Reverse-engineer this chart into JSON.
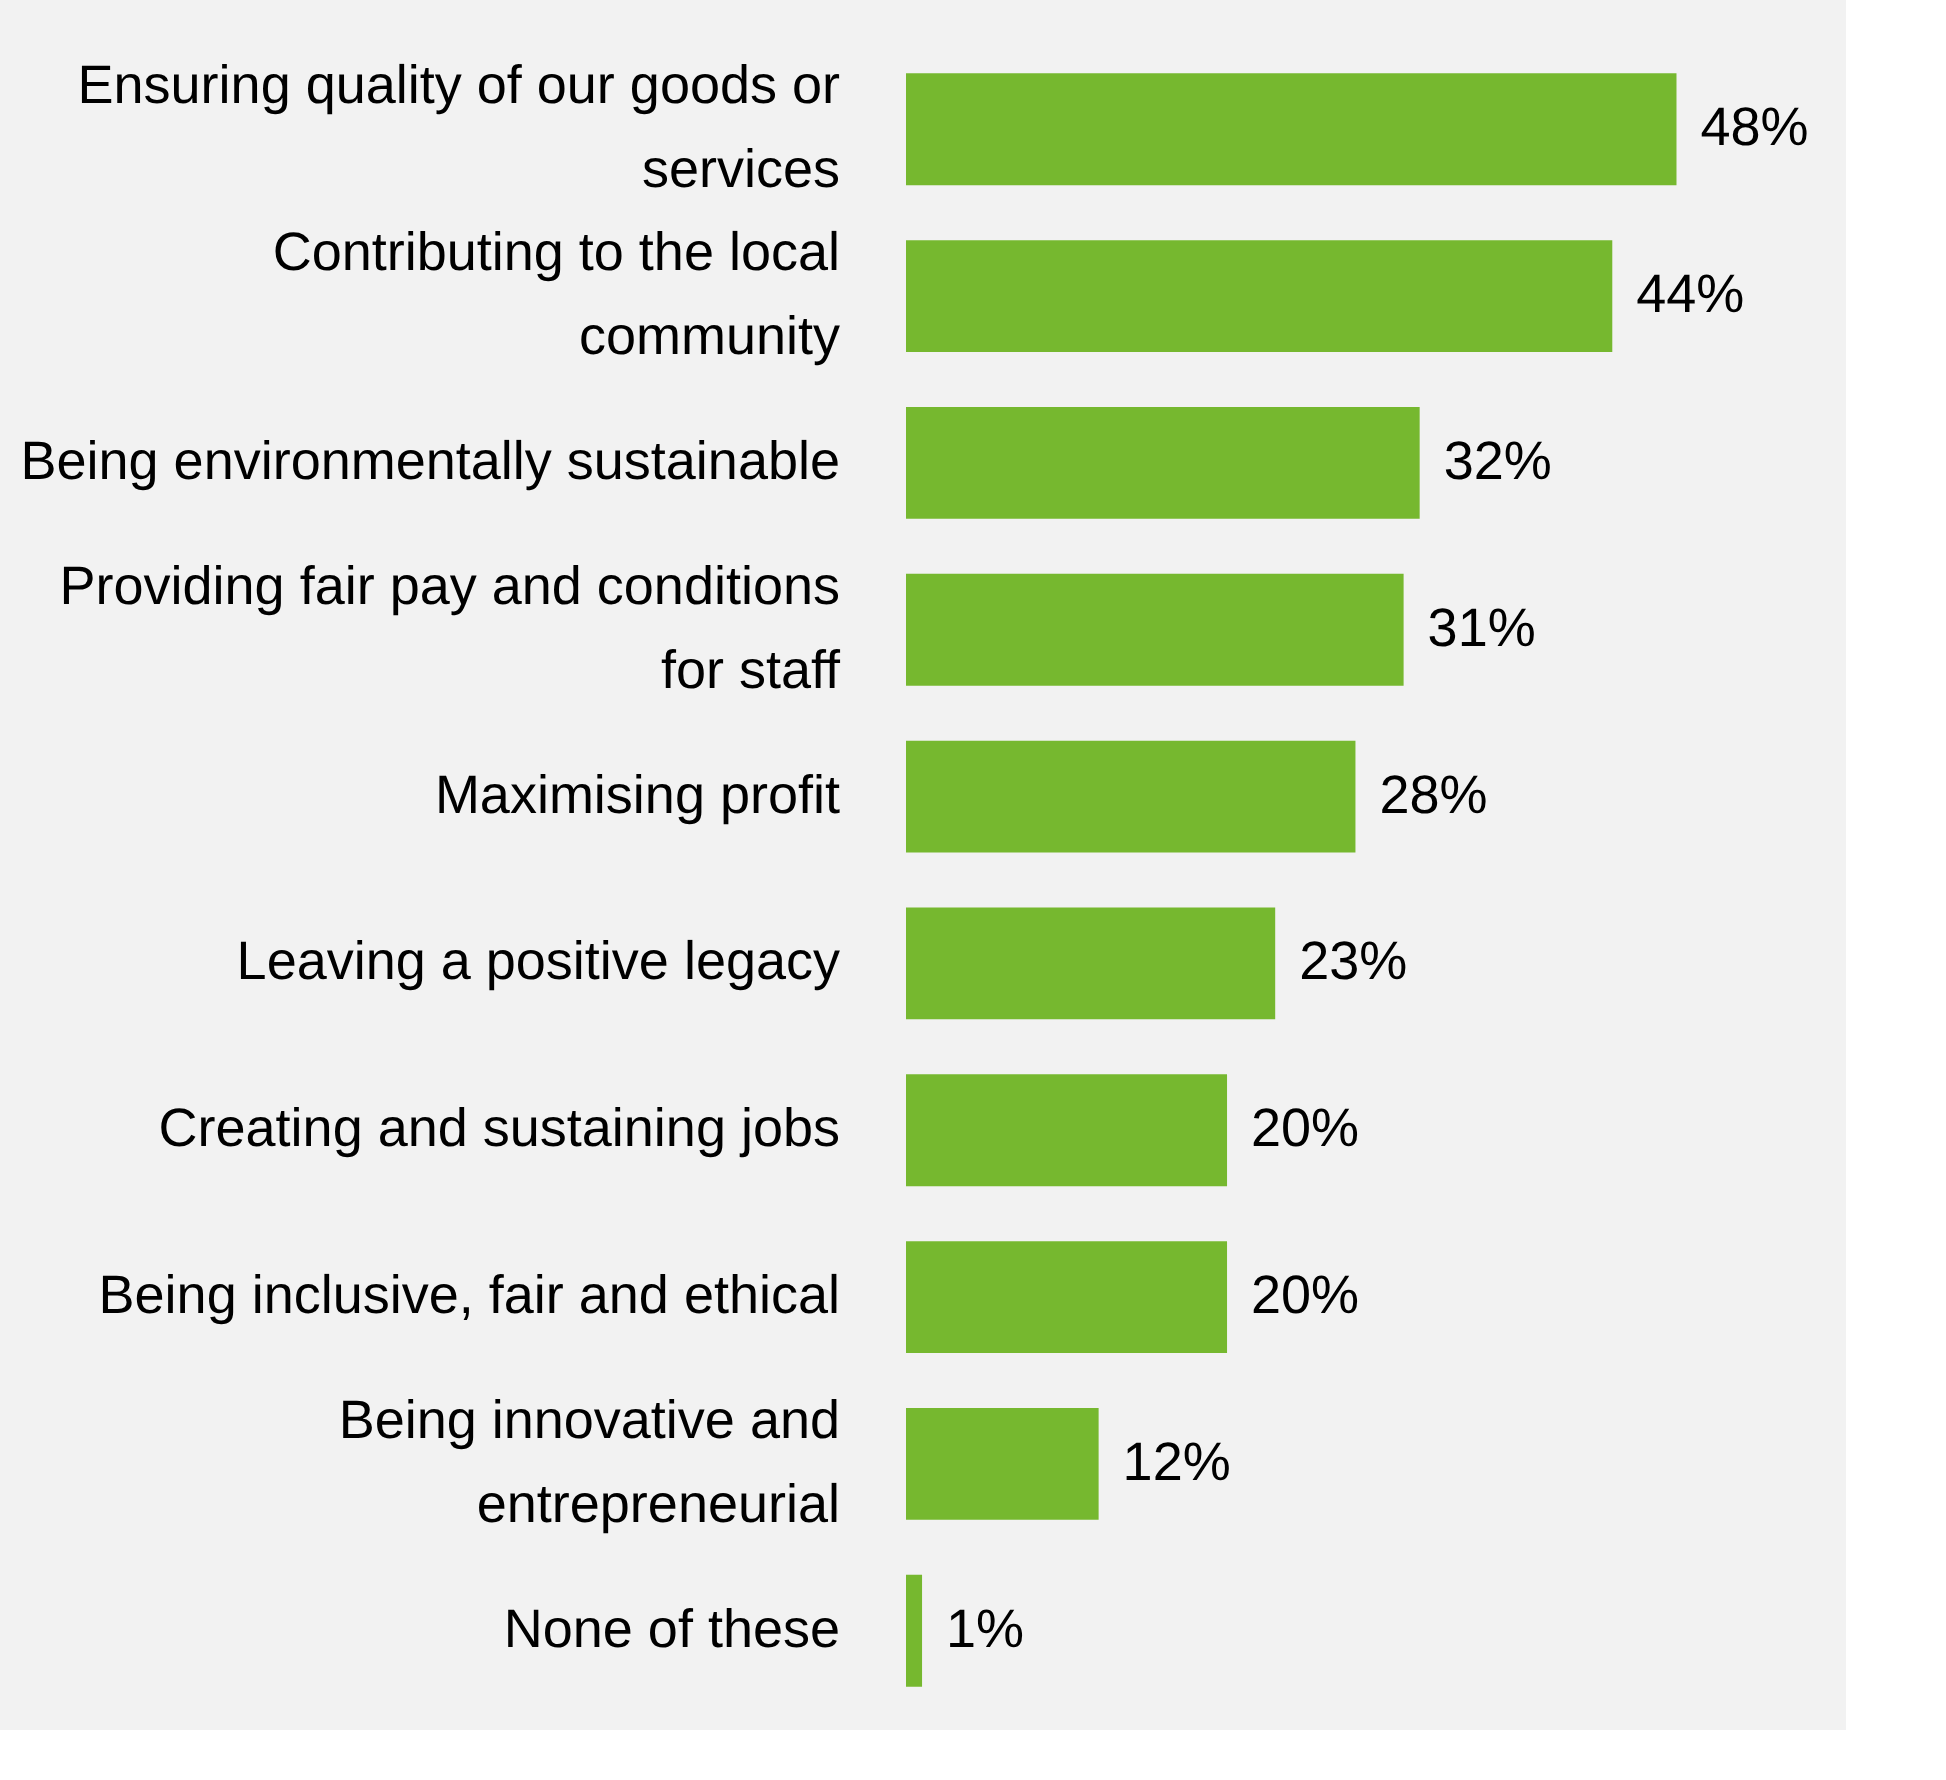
{
  "chart_data": {
    "type": "bar",
    "orientation": "horizontal",
    "color": "#76b82f",
    "categories": [
      "Ensuring quality of our goods or services",
      "Contributing to the local community",
      "Being environmentally sustainable",
      "Providing fair pay and conditions for staff",
      "Maximising profit",
      "Leaving a positive legacy",
      "Creating and sustaining jobs",
      "Being inclusive, fair and ethical",
      "Being innovative and entrepreneurial",
      "None of these"
    ],
    "values": [
      48,
      44,
      32,
      31,
      28,
      23,
      20,
      20,
      12,
      1
    ],
    "value_labels": [
      "48%",
      "44%",
      "32%",
      "31%",
      "28%",
      "23%",
      "20%",
      "20%",
      "12%",
      "1%"
    ]
  }
}
